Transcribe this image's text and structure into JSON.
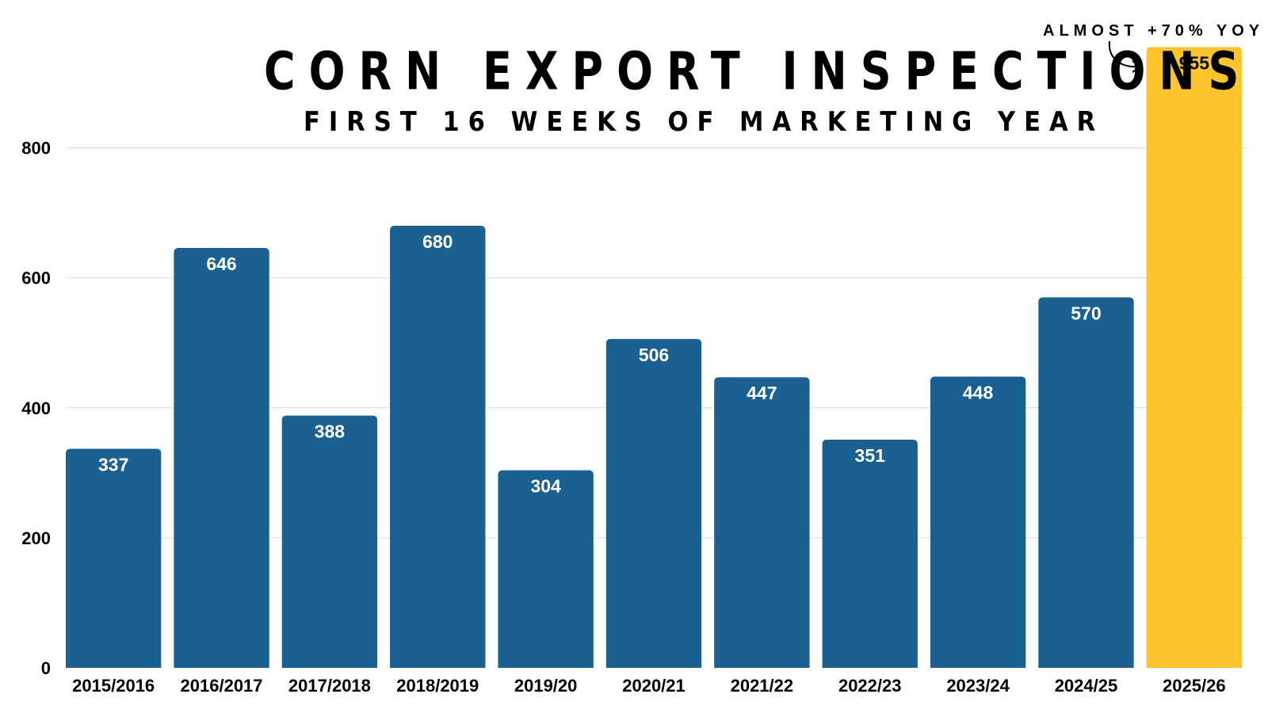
{
  "header": {
    "title": "CORN EXPORT INSPECTIONS",
    "subtitle": "FIRST 16 WEEKS OF MARKETING YEAR",
    "annotation": "ALMOST +70% YOY"
  },
  "colors": {
    "bar": "#1a6090",
    "highlight": "#fcc52d",
    "label_on_bar": "#ffffff",
    "label_on_highlight": "#000000",
    "grid": "#d9d9d9"
  },
  "chart_data": {
    "type": "bar",
    "title": "CORN EXPORT INSPECTIONS",
    "subtitle": "FIRST 16 WEEKS OF MARKETING YEAR",
    "xlabel": "",
    "ylabel": "",
    "categories": [
      "2015/2016",
      "2016/2017",
      "2017/2018",
      "2018/2019",
      "2019/20",
      "2020/21",
      "2021/22",
      "2022/23",
      "2023/24",
      "2024/25",
      "2025/26"
    ],
    "values": [
      337,
      646,
      388,
      680,
      304,
      506,
      447,
      351,
      448,
      570,
      955
    ],
    "highlight_index": 10,
    "yticks": [
      0,
      200,
      400,
      600,
      800
    ],
    "ylim": [
      0,
      955
    ],
    "grid": true,
    "legend": "none",
    "annotations": [
      {
        "text": "ALMOST +70% YOY",
        "target": "2025/26"
      }
    ]
  }
}
